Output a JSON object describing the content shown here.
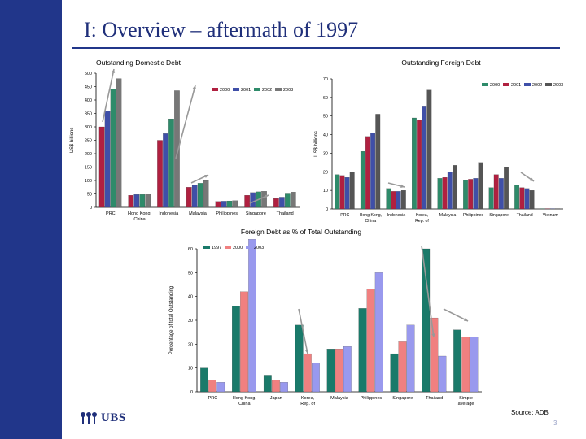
{
  "slide": {
    "title": "I: Overview – aftermath of 1997",
    "source": "Source: ADB",
    "page_number": "3",
    "logo_text": "UBS",
    "colors": {
      "sidebar": "#21368a",
      "title": "#1f2f7a"
    }
  },
  "chart_data": [
    {
      "type": "bar",
      "title": "Outstanding Domestic Debt",
      "ylabel": "US$ billions",
      "ylim": [
        0,
        500
      ],
      "yticks": [
        0,
        50,
        100,
        150,
        200,
        250,
        300,
        350,
        400,
        450,
        500
      ],
      "legend_position": "top-right",
      "grid": false,
      "categories": [
        "PRC",
        "Hong Kong, China",
        "Indonesia",
        "Malaysia",
        "Philippines",
        "Singapore",
        "Thailand"
      ],
      "series": [
        {
          "name": "2000",
          "color": "#b02040",
          "values": [
            300,
            45,
            250,
            75,
            22,
            45,
            33
          ]
        },
        {
          "name": "2001",
          "color": "#3f4fa8",
          "values": [
            360,
            48,
            275,
            82,
            23,
            55,
            38
          ]
        },
        {
          "name": "2002",
          "color": "#2e8b6a",
          "values": [
            440,
            48,
            330,
            90,
            24,
            58,
            50
          ]
        },
        {
          "name": "2003",
          "color": "#777777",
          "values": [
            480,
            48,
            435,
            100,
            25,
            60,
            57
          ]
        }
      ]
    },
    {
      "type": "bar",
      "title": "Outstanding Foreign Debt",
      "ylabel": "US$ billions",
      "ylim": [
        0,
        70
      ],
      "yticks": [
        0,
        10,
        20,
        30,
        40,
        50,
        60,
        70
      ],
      "legend_position": "top-right",
      "grid": false,
      "categories": [
        "PRC",
        "Hong Kong, China",
        "Indonesia",
        "Korea, Rep. of",
        "Malaysia",
        "Philippines",
        "Singapore",
        "Thailand",
        "Vietnam"
      ],
      "series": [
        {
          "name": "2000",
          "color": "#2e8b6a",
          "values": [
            18.5,
            31,
            11,
            49,
            16.5,
            15.5,
            11.5,
            13,
            0.2
          ]
        },
        {
          "name": "2001",
          "color": "#b02040",
          "values": [
            18,
            39,
            9.5,
            48,
            17,
            16,
            18.5,
            11.5,
            0.2
          ]
        },
        {
          "name": "2002",
          "color": "#3f4fa8",
          "values": [
            17,
            41,
            9.5,
            55,
            20,
            16.5,
            16.5,
            11,
            0.2
          ]
        },
        {
          "name": "2003",
          "color": "#555555",
          "values": [
            20,
            51,
            10,
            64,
            23.5,
            25,
            22.5,
            10,
            0.2
          ]
        }
      ]
    },
    {
      "type": "bar",
      "title": "Foreign Debt as % of Total Outstanding",
      "ylabel": "Percentage of total Outstanding",
      "ylim": [
        0,
        60
      ],
      "yticks": [
        0,
        10,
        20,
        30,
        40,
        50,
        60
      ],
      "legend_position": "top-left",
      "grid": false,
      "categories": [
        "PRC",
        "Hong Kong, China",
        "Japan",
        "Korea, Rep. of",
        "Malaysia",
        "Philippines",
        "Singapore",
        "Thailand",
        "Simple average"
      ],
      "series": [
        {
          "name": "1997",
          "color": "#1a7a6a",
          "values": [
            10,
            36,
            7,
            28,
            18,
            35,
            16,
            60,
            26
          ]
        },
        {
          "name": "2000",
          "color": "#f08080",
          "values": [
            5,
            42,
            5,
            16,
            18,
            43,
            21,
            31,
            23
          ]
        },
        {
          "name": "2003",
          "color": "#9999ee",
          "values": [
            4,
            64,
            4,
            12,
            19,
            50,
            28,
            15,
            23
          ]
        }
      ]
    }
  ]
}
